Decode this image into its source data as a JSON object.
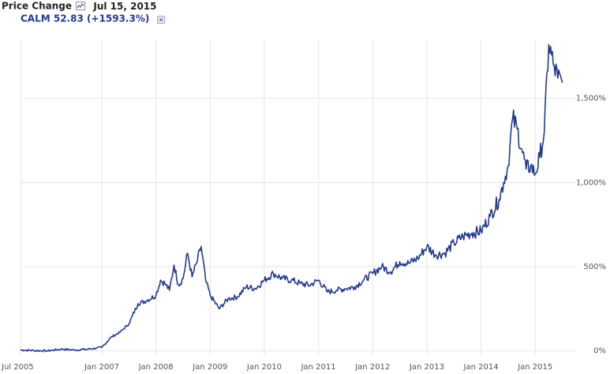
{
  "header": {
    "title": "Price Change",
    "date": "Jul 15, 2015",
    "chart_type_icon": "line-chart-icon",
    "legend_label": "CALM 52.83 (+1593.3%)",
    "legend_close_icon": "close-icon"
  },
  "colors": {
    "series": "#233a8b",
    "grid": "#e6e6e6",
    "axis_text": "#555555"
  },
  "chart_data": {
    "type": "line",
    "xlabel": "",
    "ylabel": "",
    "x_ticks": [
      "Jul 2005",
      "Jan 2007",
      "Jan 2008",
      "Jan 2009",
      "Jan 2010",
      "Jan 2011",
      "Jan 2012",
      "Jan 2013",
      "Jan 2014",
      "Jan 2015"
    ],
    "y_ticks": [
      "0%",
      "500%",
      "1,000%",
      "1,500%"
    ],
    "ylim": [
      -25,
      1850
    ],
    "y_axis_position": "right",
    "grid": true,
    "series": [
      {
        "name": "CALM",
        "x": [
          "2005-07",
          "2005-10",
          "2006-01",
          "2006-04",
          "2006-07",
          "2006-10",
          "2007-01",
          "2007-03",
          "2007-05",
          "2007-07",
          "2007-09",
          "2007-11",
          "2008-01",
          "2008-02",
          "2008-03",
          "2008-04",
          "2008-05",
          "2008-06",
          "2008-07",
          "2008-08",
          "2008-09",
          "2008-10",
          "2008-11",
          "2008-12",
          "2009-01",
          "2009-03",
          "2009-05",
          "2009-07",
          "2009-09",
          "2009-11",
          "2010-01",
          "2010-03",
          "2010-05",
          "2010-07",
          "2010-09",
          "2010-11",
          "2011-01",
          "2011-03",
          "2011-05",
          "2011-07",
          "2011-09",
          "2011-11",
          "2012-01",
          "2012-03",
          "2012-05",
          "2012-07",
          "2012-09",
          "2012-11",
          "2013-01",
          "2013-03",
          "2013-05",
          "2013-07",
          "2013-09",
          "2013-11",
          "2014-01",
          "2014-03",
          "2014-05",
          "2014-06",
          "2014-07",
          "2014-08",
          "2014-09",
          "2014-10",
          "2014-11",
          "2014-12",
          "2015-01",
          "2015-02",
          "2015-03",
          "2015-04",
          "2015-05",
          "2015-06",
          "2015-07"
        ],
        "y": [
          5,
          2,
          0,
          10,
          5,
          10,
          20,
          80,
          110,
          160,
          280,
          300,
          330,
          420,
          400,
          360,
          510,
          390,
          430,
          580,
          440,
          520,
          620,
          420,
          330,
          250,
          310,
          320,
          380,
          370,
          420,
          460,
          430,
          420,
          400,
          390,
          420,
          350,
          360,
          370,
          380,
          420,
          460,
          500,
          470,
          530,
          520,
          550,
          620,
          570,
          580,
          640,
          680,
          700,
          710,
          800,
          900,
          1000,
          1100,
          1380,
          1320,
          1200,
          1080,
          1100,
          1050,
          1150,
          1300,
          1820,
          1700,
          1620,
          1593
        ]
      }
    ]
  }
}
